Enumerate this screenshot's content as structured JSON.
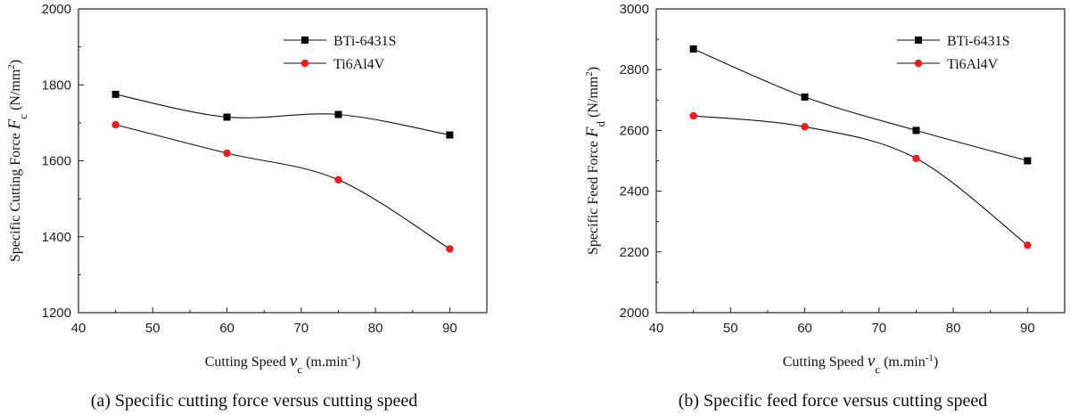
{
  "chart_data": [
    {
      "type": "line",
      "caption": "(a) Specific cutting force versus cutting speed",
      "x": [
        45,
        60,
        75,
        90
      ],
      "xlim": [
        40,
        95
      ],
      "xticks": [
        40,
        50,
        60,
        70,
        80,
        90
      ],
      "ylim": [
        1200,
        2000
      ],
      "yticks": [
        1200,
        1400,
        1600,
        1800,
        2000
      ],
      "xlabel": {
        "main": "Cutting Speed ",
        "var": "v",
        "sub": "c",
        "unit": " (m.min",
        "sup": "-1",
        "close": ")"
      },
      "ylabel": {
        "main": "Specific Cutting Force ",
        "var": "F",
        "sub": "c",
        "unit": " (N/mm",
        "sup": "2",
        "close": ")"
      },
      "legend_position": "top-right",
      "grid": false,
      "series": [
        {
          "name": "BTi-6431S",
          "marker": "square",
          "color": "#000000",
          "values": [
            1775,
            1715,
            1722,
            1668
          ]
        },
        {
          "name": "Ti6Al4V",
          "marker": "circle",
          "color": "#ee1c1c",
          "values": [
            1695,
            1620,
            1550,
            1368
          ]
        }
      ]
    },
    {
      "type": "line",
      "caption": "(b) Specific feed force versus cutting speed",
      "x": [
        45,
        60,
        75,
        90
      ],
      "xlim": [
        40,
        95
      ],
      "xticks": [
        40,
        50,
        60,
        70,
        80,
        90
      ],
      "ylim": [
        2000,
        3000
      ],
      "yticks": [
        2000,
        2200,
        2400,
        2600,
        2800,
        3000
      ],
      "xlabel": {
        "main": "Cutting Speed ",
        "var": "v",
        "sub": "c",
        "unit": " (m.min",
        "sup": "-1",
        "close": ")"
      },
      "ylabel": {
        "main": "Specific Feed Force ",
        "var": "F",
        "sub": "d",
        "unit": " (N/mm",
        "sup": "2",
        "close": ")"
      },
      "legend_position": "top-right",
      "grid": false,
      "series": [
        {
          "name": "BTi-6431S",
          "marker": "square",
          "color": "#000000",
          "values": [
            2868,
            2710,
            2600,
            2500
          ]
        },
        {
          "name": "Ti6Al4V",
          "marker": "circle",
          "color": "#ee1c1c",
          "values": [
            2648,
            2612,
            2508,
            2222
          ]
        }
      ]
    }
  ]
}
